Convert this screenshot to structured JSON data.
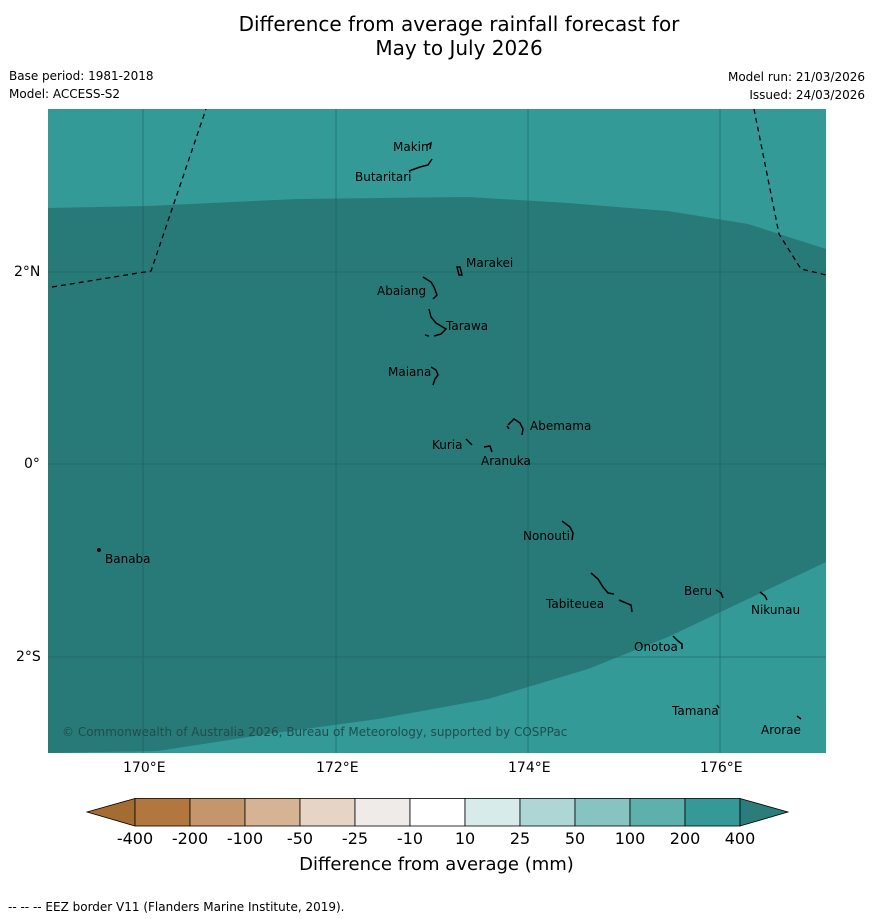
{
  "title": {
    "line1": "Difference from average rainfall forecast for",
    "line2": "May to July 2026"
  },
  "meta": {
    "base_period": "Base period: 1981-2018",
    "model": "Model: ACCESS-S2",
    "model_run": "Model run: 21/03/2026",
    "issued": "Issued: 24/03/2026"
  },
  "axes": {
    "lat_labels": [
      "2°N",
      "0°",
      "2°S"
    ],
    "lon_labels": [
      "170°E",
      "172°E",
      "174°E",
      "176°E"
    ]
  },
  "places": {
    "makin": "Makin",
    "butaritari": "Butaritari",
    "marakei": "Marakei",
    "abaiang": "Abaiang",
    "tarawa": "Tarawa",
    "maiana": "Maiana",
    "abemama": "Abemama",
    "kuria": "Kuria",
    "aranuka": "Aranuka",
    "nonouti": "Nonouti",
    "banaba": "Banaba",
    "beru": "Beru",
    "nikunau": "Nikunau",
    "tabiteuea": "Tabiteuea",
    "onotoa": "Onotoa",
    "tamana": "Tamana",
    "arorae": "Arorae"
  },
  "copyright": "© Commonwealth of Australia 2026, Bureau of Meteorology, supported by COSPPac",
  "colorbar": {
    "title": "Difference from average (mm)",
    "ticks": [
      "-400",
      "-200",
      "-100",
      "-50",
      "-25",
      "-10",
      "10",
      "25",
      "50",
      "100",
      "200",
      "400"
    ],
    "colors": [
      "#a56c32",
      "#b2773e",
      "#c5966b",
      "#d6b394",
      "#e6d4c4",
      "#efebe8",
      "#ffffff",
      "#d7ebea",
      "#aed6d5",
      "#86c3c1",
      "#5eb0ad",
      "#359a97",
      "#2a7d7a"
    ]
  },
  "map_colors": {
    "category_200_400": "#339a98",
    "category_above_400": "#287a78"
  },
  "footer": "--  --  -- EEZ border V11 (Flanders Marine Institute, 2019)."
}
